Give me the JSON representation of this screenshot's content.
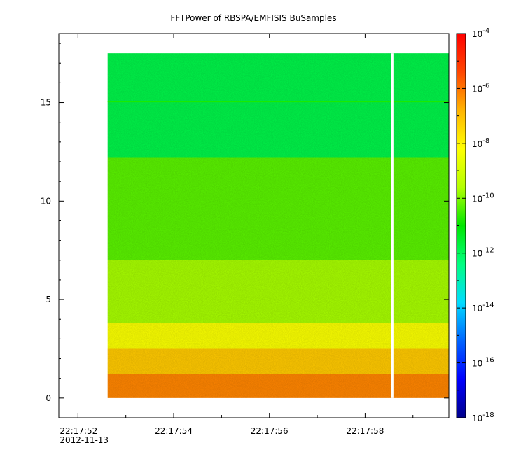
{
  "chart_data": {
    "type": "heatmap",
    "title": "FFTPower of RBSPA/EMFISIS  BuSamples",
    "xlabel": "",
    "ylabel": "",
    "x_tick_labels": [
      "22:17:52",
      "22:17:54",
      "22:17:56",
      "22:17:58"
    ],
    "x_date_label": "2012-11-13",
    "x_range_seconds": [
      51.6,
      59.75
    ],
    "data_time_range_seconds": [
      52.62,
      59.75
    ],
    "gap_time_seconds": 58.57,
    "ylim": [
      -1.0,
      18.5
    ],
    "y_ticks": [
      0,
      5,
      10,
      15
    ],
    "data_y_range": [
      0,
      17.5
    ],
    "colorbar": {
      "scale": "log",
      "range": [
        1e-18,
        0.0001
      ],
      "tick_base": "10",
      "tick_exponents": [
        "-4",
        "-6",
        "-8",
        "-10",
        "-12",
        "-14",
        "-16",
        "-18"
      ],
      "colormap": [
        "#00008b",
        "#0000ff",
        "#0064ff",
        "#00dcff",
        "#00ff80",
        "#00e600",
        "#b4ff00",
        "#ffff00",
        "#ffb400",
        "#ff4600",
        "#ff0000"
      ]
    },
    "bands": [
      {
        "y_from": 0,
        "y_to": 1.2,
        "log10_power": -6.2
      },
      {
        "y_from": 1.2,
        "y_to": 2.5,
        "log10_power": -7.2
      },
      {
        "y_from": 2.5,
        "y_to": 3.8,
        "log10_power": -8.3
      },
      {
        "y_from": 3.8,
        "y_to": 7,
        "log10_power": -9.7
      },
      {
        "y_from": 7,
        "y_to": 12.2,
        "log10_power": -10.3
      },
      {
        "y_from": 12.2,
        "y_to": 17.5,
        "log10_power": -11.8
      }
    ],
    "line_feature": {
      "y": 15.05,
      "log10_power": -10.8
    }
  }
}
